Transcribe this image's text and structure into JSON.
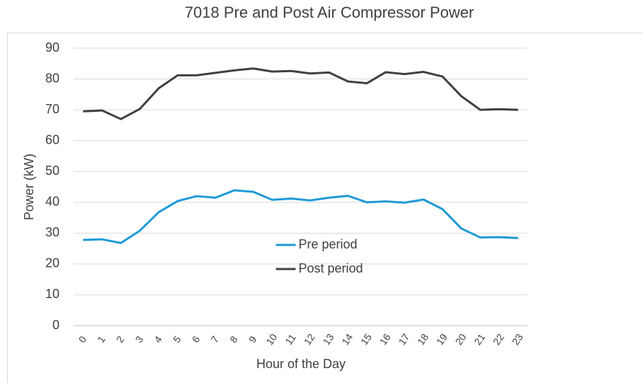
{
  "chart_data": {
    "type": "line",
    "title": "7018 Pre and Post Air Compressor Power",
    "x_label": "Hour of the Day",
    "y_label": "Power (kW)",
    "categories": [
      "0",
      "1",
      "2",
      "3",
      "4",
      "5",
      "6",
      "7",
      "8",
      "9",
      "10",
      "11",
      "12",
      "13",
      "14",
      "15",
      "16",
      "17",
      "18",
      "19",
      "20",
      "21",
      "22",
      "23"
    ],
    "series": [
      {
        "name": "Pre period",
        "color": "#1f9ad6",
        "values": [
          27.8,
          28,
          26.8,
          30.8,
          36.8,
          40.4,
          42,
          41.5,
          43.9,
          43.4,
          40.8,
          41.2,
          40.6,
          41.5,
          42.1,
          40,
          40.3,
          39.9,
          40.9,
          37.8,
          31.5,
          28.6,
          28.7,
          28.4
        ]
      },
      {
        "name": "Post period",
        "color": "#404040",
        "values": [
          69.5,
          69.8,
          67,
          70.3,
          77,
          81.2,
          81.2,
          82,
          82.8,
          83.4,
          82.4,
          82.6,
          81.8,
          82.1,
          79.2,
          78.6,
          82.2,
          81.6,
          82.3,
          80.8,
          74.4,
          70,
          70.2,
          70
        ]
      }
    ],
    "ylim": [
      0,
      90
    ],
    "yticks": [
      0,
      10,
      20,
      30,
      40,
      50,
      60,
      70,
      80,
      90
    ],
    "grid": true,
    "legend": "center"
  }
}
